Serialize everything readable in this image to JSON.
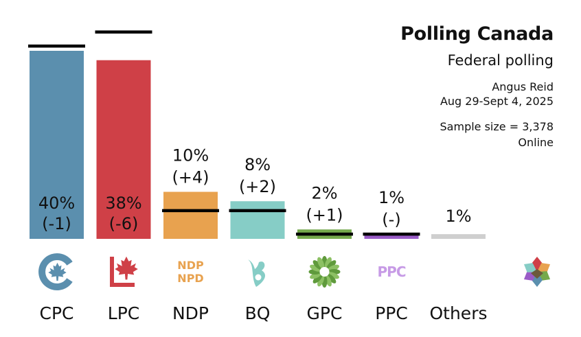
{
  "header": {
    "title": "Polling Canada",
    "subtitle": "Federal polling",
    "pollster": "Angus Reid",
    "dates": "Aug 29-Sept 4, 2025",
    "sample": "Sample size = 3,378",
    "method": "Online"
  },
  "chart_data": {
    "type": "bar",
    "categories": [
      "CPC",
      "LPC",
      "NDP",
      "BQ",
      "GPC",
      "PPC",
      "Others"
    ],
    "values": [
      40,
      38,
      10,
      8,
      2,
      1,
      1
    ],
    "previous": [
      41,
      44,
      6,
      6,
      1,
      1,
      null
    ],
    "value_labels": [
      "40%",
      "38%",
      "10%",
      "8%",
      "2%",
      "1%",
      "1%"
    ],
    "change_labels": [
      "(-1)",
      "(-6)",
      "(+4)",
      "(+2)",
      "(+1)",
      "(-)",
      ""
    ],
    "colors": [
      "#5b8fae",
      "#cf4047",
      "#e8a24f",
      "#86cdc6",
      "#75a94c",
      "#9a5cc7",
      "#cfcfcf"
    ],
    "logos": [
      "cpc-logo",
      "lpc-logo",
      "ndp-logo",
      "bq-logo",
      "gpc-logo",
      "ppc-logo",
      "none"
    ],
    "logo_text": {
      "ndp_line1": "NDP",
      "ndp_line2": "NPD",
      "ppc": "PPC"
    },
    "ylim": [
      0,
      45
    ],
    "legend": "none",
    "grid": false,
    "xlabel": "",
    "ylabel": ""
  }
}
